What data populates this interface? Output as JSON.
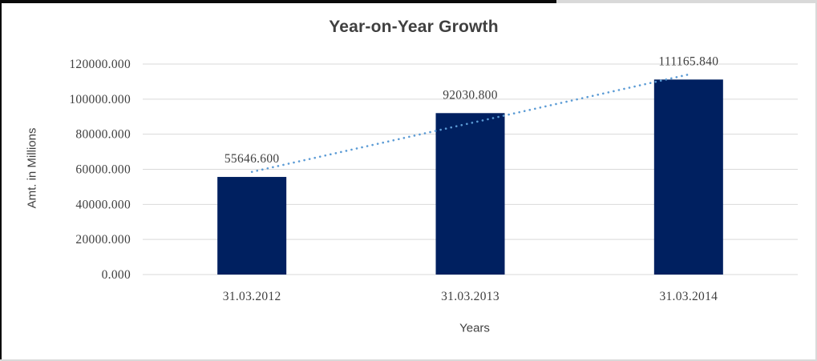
{
  "chart_data": {
    "type": "bar",
    "title": "Year-on-Year Growth",
    "xlabel": "Years",
    "ylabel": "Amt. in Millions",
    "categories": [
      "31.03.2012",
      "31.03.2013",
      "31.03.2014"
    ],
    "values": [
      55646.6,
      92030.8,
      111165.84
    ],
    "data_labels": [
      "55646.600",
      "92030.800",
      "111165.840"
    ],
    "y_ticks": [
      {
        "value": 120000,
        "label": "120000.000"
      },
      {
        "value": 100000,
        "label": "100000.000"
      },
      {
        "value": 80000,
        "label": "80000.000"
      },
      {
        "value": 60000,
        "label": "60000.000"
      },
      {
        "value": 40000,
        "label": "40000.000"
      },
      {
        "value": 20000,
        "label": "20000.000"
      },
      {
        "value": 0,
        "label": "0.000"
      }
    ],
    "ylim": [
      0,
      120000
    ],
    "grid": true,
    "legend": "none",
    "trendline": {
      "type": "linear",
      "style": "dotted",
      "color": "#5b9bd5",
      "start_value": 58521.46,
      "end_value": 114040.71
    },
    "colors": {
      "bar": "#002060",
      "gridline": "#d9d9d9",
      "title_text": "#404040",
      "axis_text": "#3f3f3f"
    }
  }
}
